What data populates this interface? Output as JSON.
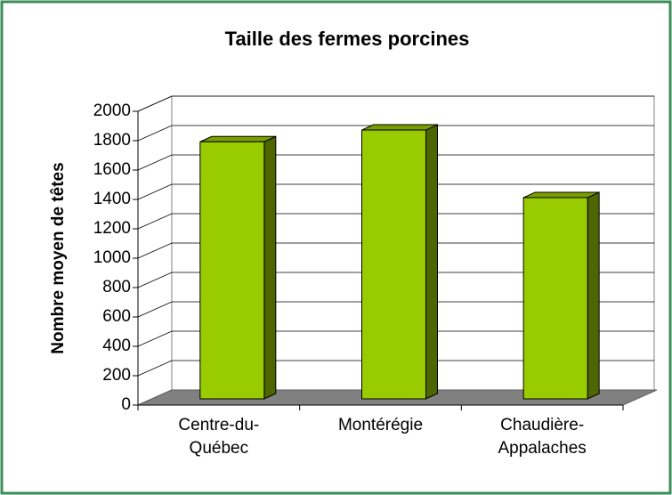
{
  "chart_data": {
    "type": "bar",
    "title": "Taille des fermes porcines",
    "y_label": "Nombre moyen de têtes",
    "categories": [
      "Centre-du-\nQuébec",
      "Montérégie",
      "Chaudière-\nAppalaches"
    ],
    "values": [
      1750,
      1830,
      1370
    ],
    "color": "#99cc00",
    "ylim": [
      0,
      2000
    ],
    "yticks": [
      0,
      200,
      400,
      600,
      800,
      1000,
      1200,
      1400,
      1600,
      1800,
      2000
    ],
    "grid": true
  }
}
